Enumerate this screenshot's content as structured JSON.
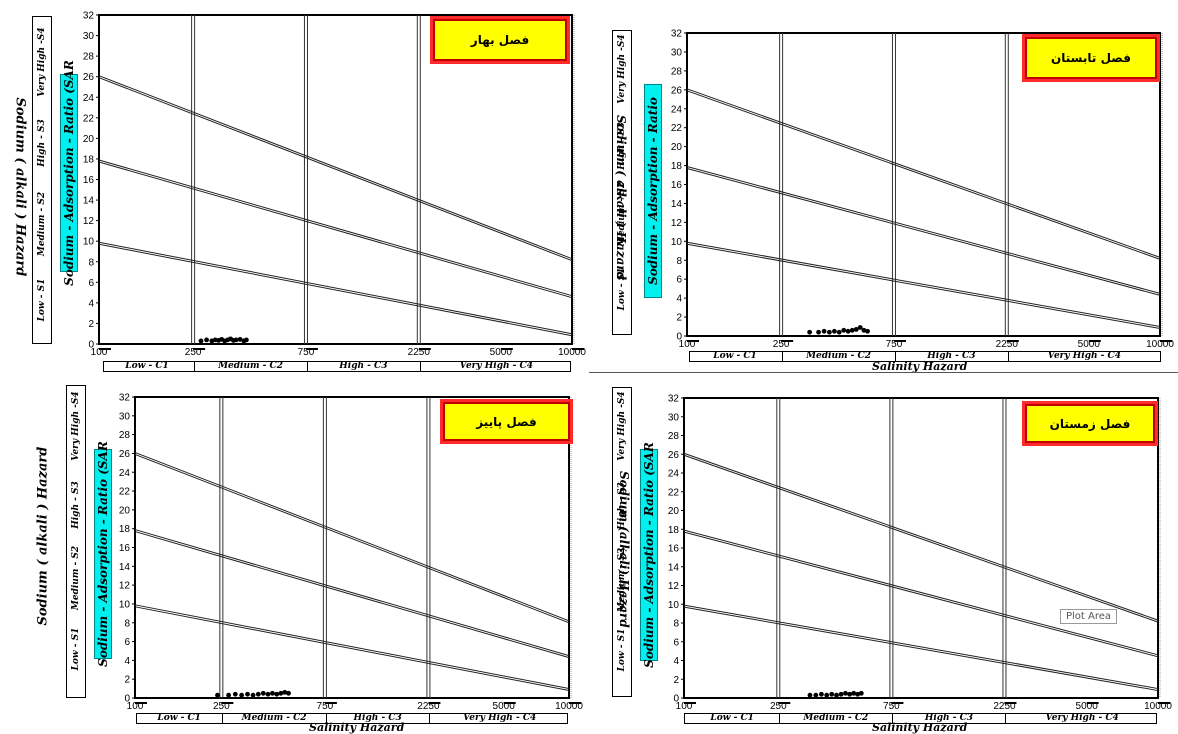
{
  "chart_data": [
    {
      "type": "scatter",
      "title": "فصل بهار",
      "ylabel_outer": "Sodium ( alkali ) Hazard",
      "ylabel_inner": "Sodium - Adsorption - Ratio (SAR",
      "xlabel": "",
      "x_scale": "log",
      "xlim": [
        100,
        10000
      ],
      "ylim": [
        0,
        32
      ],
      "x_ticks": [
        "100",
        "250",
        "750",
        "2250",
        "5000",
        "10000"
      ],
      "y_ticks": [
        "0",
        "2",
        "4",
        "6",
        "8",
        "10",
        "12",
        "14",
        "16",
        "18",
        "20",
        "22",
        "24",
        "26",
        "28",
        "30",
        "32"
      ],
      "class_boundaries_x": [
        250,
        750,
        2250
      ],
      "class_lines": [
        {
          "name": "S1-S2",
          "points": [
            [
              100,
              9.8
            ],
            [
              10000,
              0.9
            ]
          ]
        },
        {
          "name": "S2-S3",
          "points": [
            [
              100,
              17.8
            ],
            [
              10000,
              4.6
            ]
          ]
        },
        {
          "name": "S3-S4",
          "points": [
            [
              100,
              26
            ],
            [
              10000,
              8.2
            ]
          ]
        }
      ],
      "s_classes": [
        "Low - S1",
        "Medium - S2",
        "High - S3",
        "Very High -S4"
      ],
      "c_classes": [
        "Low - C1",
        "Medium - C2",
        "High - C3",
        "Very High - C4"
      ],
      "points": [
        [
          270,
          0.3
        ],
        [
          285,
          0.4
        ],
        [
          300,
          0.3
        ],
        [
          310,
          0.4
        ],
        [
          320,
          0.35
        ],
        [
          330,
          0.45
        ],
        [
          340,
          0.3
        ],
        [
          350,
          0.4
        ],
        [
          360,
          0.5
        ],
        [
          370,
          0.35
        ],
        [
          380,
          0.4
        ],
        [
          395,
          0.45
        ],
        [
          410,
          0.3
        ],
        [
          420,
          0.4
        ]
      ]
    },
    {
      "type": "scatter",
      "title": "فصل تابستان",
      "ylabel_outer": "Sodium ( alkali ) Hazard",
      "ylabel_inner": "Sodium - Adsorption - Ratio",
      "xlabel": "Salinity Hazard",
      "x_scale": "log",
      "xlim": [
        100,
        10000
      ],
      "ylim": [
        0,
        32
      ],
      "x_ticks": [
        "100",
        "250",
        "750",
        "2250",
        "5000",
        "10000"
      ],
      "y_ticks": [
        "0",
        "2",
        "4",
        "6",
        "8",
        "10",
        "12",
        "14",
        "16",
        "18",
        "20",
        "22",
        "24",
        "26",
        "28",
        "30",
        "32"
      ],
      "class_boundaries_x": [
        250,
        750,
        2250
      ],
      "class_lines": [
        {
          "name": "S1-S2",
          "points": [
            [
              100,
              9.8
            ],
            [
              10000,
              0.9
            ]
          ]
        },
        {
          "name": "S2-S3",
          "points": [
            [
              100,
              17.8
            ],
            [
              10000,
              4.4
            ]
          ]
        },
        {
          "name": "S3-S4",
          "points": [
            [
              100,
              26
            ],
            [
              10000,
              8.2
            ]
          ]
        }
      ],
      "s_classes": [
        "Low - S1",
        "Medium - S2",
        "High - S3",
        "Very High -S4"
      ],
      "c_classes": [
        "Low - C1",
        "Medium - C2",
        "High - C3",
        "Very High - C4"
      ],
      "points": [
        [
          330,
          0.4
        ],
        [
          360,
          0.4
        ],
        [
          380,
          0.5
        ],
        [
          400,
          0.4
        ],
        [
          420,
          0.5
        ],
        [
          440,
          0.4
        ],
        [
          460,
          0.6
        ],
        [
          480,
          0.5
        ],
        [
          500,
          0.6
        ],
        [
          520,
          0.7
        ],
        [
          540,
          0.9
        ],
        [
          560,
          0.6
        ],
        [
          580,
          0.5
        ]
      ]
    },
    {
      "type": "scatter",
      "title": "فصل پاییز",
      "ylabel_outer": "Sodium ( alkali ) Hazard",
      "ylabel_inner": "Sodium - Adsorption - Ratio (SAR",
      "xlabel": "Salinity Hazard",
      "x_scale": "log",
      "xlim": [
        100,
        10000
      ],
      "ylim": [
        0,
        32
      ],
      "x_ticks": [
        "100",
        "250",
        "750",
        "2250",
        "5000",
        "10000"
      ],
      "y_ticks": [
        "0",
        "2",
        "4",
        "6",
        "8",
        "10",
        "12",
        "14",
        "16",
        "18",
        "20",
        "22",
        "24",
        "26",
        "28",
        "30",
        "32"
      ],
      "class_boundaries_x": [
        250,
        750,
        2250
      ],
      "class_lines": [
        {
          "name": "S1-S2",
          "points": [
            [
              100,
              9.8
            ],
            [
              10000,
              0.9
            ]
          ]
        },
        {
          "name": "S2-S3",
          "points": [
            [
              100,
              17.8
            ],
            [
              10000,
              4.4
            ]
          ]
        },
        {
          "name": "S3-S4",
          "points": [
            [
              100,
              26
            ],
            [
              10000,
              8.1
            ]
          ]
        }
      ],
      "s_classes": [
        "Low - S1",
        "Medium - S2",
        "High - S3",
        "Very High -S4"
      ],
      "c_classes": [
        "Low - C1",
        "Medium - C2",
        "High - C3",
        "Very High - C4"
      ],
      "points": [
        [
          240,
          0.3
        ],
        [
          270,
          0.3
        ],
        [
          290,
          0.4
        ],
        [
          310,
          0.3
        ],
        [
          330,
          0.4
        ],
        [
          350,
          0.3
        ],
        [
          370,
          0.4
        ],
        [
          390,
          0.5
        ],
        [
          410,
          0.4
        ],
        [
          430,
          0.5
        ],
        [
          450,
          0.4
        ],
        [
          470,
          0.5
        ],
        [
          490,
          0.6
        ],
        [
          510,
          0.5
        ]
      ]
    },
    {
      "type": "scatter",
      "title": "فصل زمستان",
      "ylabel_outer": "Sodium (alkali) Hazard",
      "ylabel_inner": "Sodium - Adsorption - Ratio (SAR",
      "xlabel": "Salinity Hazard",
      "x_scale": "log",
      "xlim": [
        100,
        10000
      ],
      "ylim": [
        0,
        32
      ],
      "x_ticks": [
        "100",
        "250",
        "750",
        "2250",
        "5000",
        "10000"
      ],
      "y_ticks": [
        "0",
        "2",
        "4",
        "6",
        "8",
        "10",
        "12",
        "14",
        "16",
        "18",
        "20",
        "22",
        "24",
        "26",
        "28",
        "30",
        "32"
      ],
      "class_boundaries_x": [
        250,
        750,
        2250
      ],
      "class_lines": [
        {
          "name": "S1-S2",
          "points": [
            [
              100,
              9.8
            ],
            [
              10000,
              0.9
            ]
          ]
        },
        {
          "name": "S2-S3",
          "points": [
            [
              100,
              17.8
            ],
            [
              10000,
              4.5
            ]
          ]
        },
        {
          "name": "S3-S4",
          "points": [
            [
              100,
              26
            ],
            [
              10000,
              8.2
            ]
          ]
        }
      ],
      "s_classes": [
        "Low - S1",
        "Medium - S2",
        "High - S3",
        "Very High -S4"
      ],
      "c_classes": [
        "Low - C1",
        "Medium - C2",
        "High - C3",
        "Very High - C4"
      ],
      "points": [
        [
          340,
          0.3
        ],
        [
          360,
          0.3
        ],
        [
          380,
          0.4
        ],
        [
          400,
          0.3
        ],
        [
          420,
          0.4
        ],
        [
          440,
          0.3
        ],
        [
          460,
          0.4
        ],
        [
          480,
          0.5
        ],
        [
          500,
          0.4
        ],
        [
          520,
          0.5
        ],
        [
          540,
          0.4
        ],
        [
          560,
          0.5
        ]
      ]
    }
  ],
  "tooltip": "Plot Area"
}
